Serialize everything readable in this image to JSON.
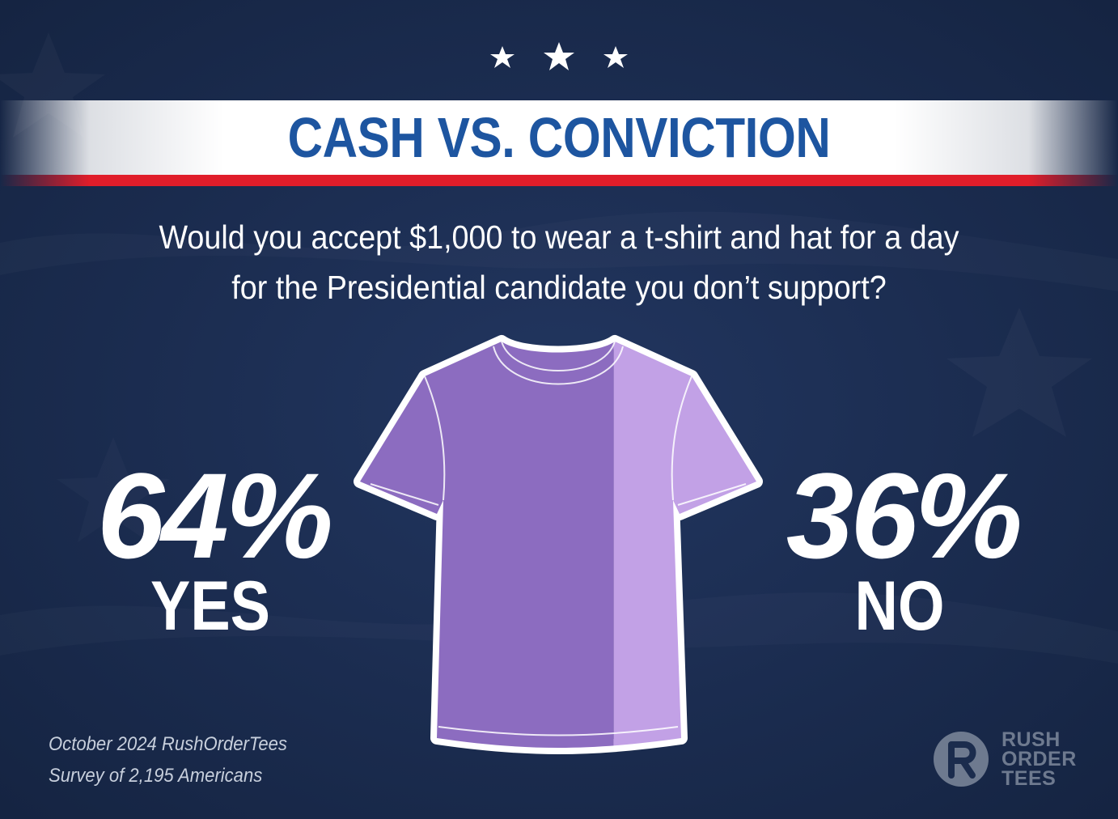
{
  "header": {
    "title": "CASH VS. CONVICTION",
    "question_line1": "Would you accept $1,000 to wear a t-shirt and hat for a day",
    "question_line2": "for the Presidential candidate you don’t support?"
  },
  "chart_data": {
    "type": "pie",
    "title": "CASH VS. CONVICTION",
    "categories": [
      "YES",
      "NO"
    ],
    "values": [
      64,
      36
    ],
    "value_labels": [
      "64%",
      "36%"
    ],
    "colors": [
      "#8c6cc0",
      "#c2a1e6"
    ]
  },
  "footer": {
    "source_line1": "October 2024 RushOrderTees",
    "source_line2": "Survey of 2,195 Americans"
  },
  "logo": {
    "icon": "rush-order-tees-logo-icon",
    "line1": "RUSH",
    "line2": "ORDER",
    "line3": "TEES"
  },
  "colors": {
    "background": "#1b2c4d",
    "title_blue": "#1d55a0",
    "stripe_red": "#e01d2a"
  }
}
